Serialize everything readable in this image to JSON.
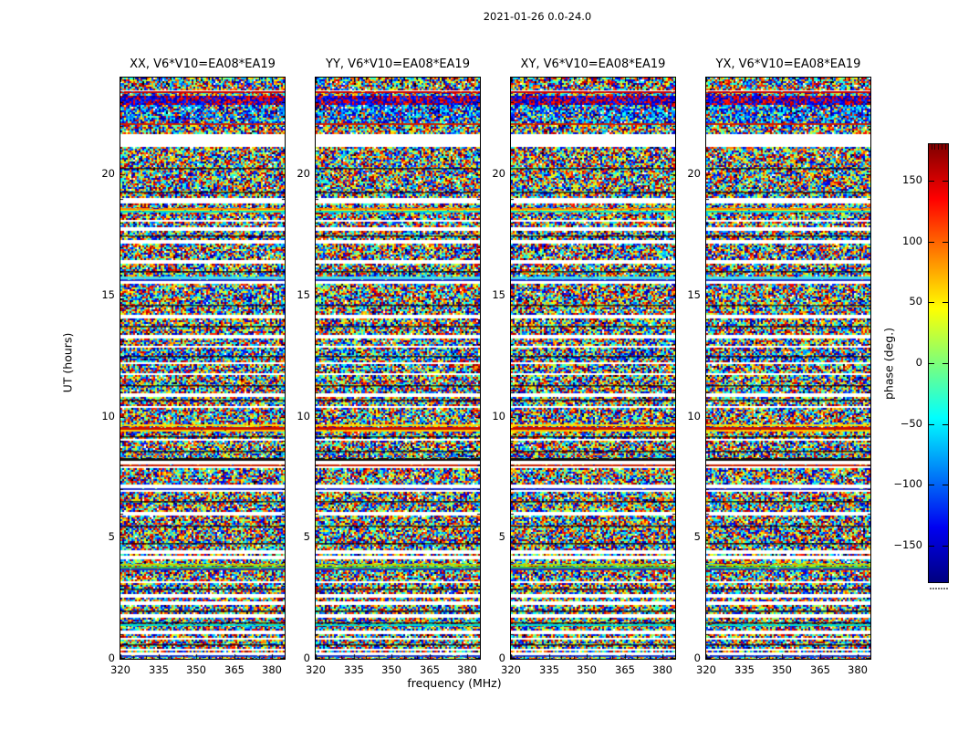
{
  "chart_data": {
    "type": "heatmap",
    "suptitle": "2021-01-26 0.0-24.0",
    "xlabel": "frequency (MHz)",
    "ylabel": "UT (hours)",
    "x_range": [
      320,
      385
    ],
    "y_range": [
      0,
      24
    ],
    "x_ticks": [
      320,
      335,
      350,
      365,
      380
    ],
    "x_tick_labels": [
      "320",
      "335",
      "350",
      "365",
      "380"
    ],
    "x_minor_ticks": [
      325,
      330,
      340,
      345,
      355,
      360,
      370,
      375
    ],
    "y_ticks": [
      0,
      5,
      10,
      15,
      20
    ],
    "y_tick_labels": [
      "0",
      "5",
      "10",
      "15",
      "20"
    ],
    "y_minor_step": 1,
    "values_description": "uniform random interferometric phase noise spanning -180 to +180 deg, with flagged (white) time ranges and coherent colored bands",
    "panels": [
      {
        "id": "xx",
        "title": "XX, V6*V10=EA08*EA19",
        "seed": 101
      },
      {
        "id": "yy",
        "title": "YY, V6*V10=EA08*EA19",
        "seed": 202
      },
      {
        "id": "xy",
        "title": "XY, V6*V10=EA08*EA19",
        "seed": 303
      },
      {
        "id": "yx",
        "title": "YX, V6*V10=EA08*EA19",
        "seed": 404
      }
    ],
    "colorbar": {
      "label": "phase (deg.)",
      "range": [
        -180,
        180
      ],
      "ticks": [
        150,
        100,
        50,
        0,
        -50,
        -100,
        -150
      ],
      "tick_labels": [
        "150",
        "100",
        "50",
        "0",
        "−50",
        "−100",
        "−150"
      ],
      "colormap": "jet",
      "gradient": [
        {
          "pos": 0.0,
          "color": "#000080"
        },
        {
          "pos": 0.125,
          "color": "#0000f1"
        },
        {
          "pos": 0.375,
          "color": "#00ffff"
        },
        {
          "pos": 0.5,
          "color": "#7dff7a"
        },
        {
          "pos": 0.625,
          "color": "#ffff00"
        },
        {
          "pos": 0.875,
          "color": "#ff0000"
        },
        {
          "pos": 1.0,
          "color": "#800000"
        }
      ]
    },
    "features": {
      "gaps": [
        [
          23.36,
          23.51
        ],
        [
          22.04,
          22.15
        ],
        [
          21.13,
          21.66
        ],
        [
          18.8,
          18.99
        ],
        [
          18.01,
          18.12
        ],
        [
          17.67,
          17.82
        ],
        [
          17.18,
          17.29
        ],
        [
          16.28,
          16.43
        ],
        [
          15.45,
          15.6
        ],
        [
          14.05,
          14.17
        ],
        [
          13.26,
          13.41
        ],
        [
          12.85,
          12.96
        ],
        [
          12.17,
          12.28
        ],
        [
          11.68,
          11.79
        ],
        [
          10.85,
          11.0
        ],
        [
          10.36,
          10.47
        ],
        [
          9.95,
          10.02
        ],
        [
          8.97,
          9.08
        ],
        [
          8.03,
          8.21
        ],
        [
          7.87,
          7.97
        ],
        [
          7.08,
          7.2
        ],
        [
          6.93,
          7.03
        ],
        [
          5.88,
          6.07
        ],
        [
          4.37,
          4.52
        ],
        [
          4.11,
          4.26
        ],
        [
          3.13,
          3.24
        ],
        [
          2.49,
          2.64
        ],
        [
          2.26,
          2.37
        ],
        [
          1.7,
          1.81
        ],
        [
          1.02,
          1.17
        ],
        [
          0.79,
          0.9
        ],
        [
          0.34,
          0.41
        ],
        [
          0.08,
          0.28
        ]
      ],
      "lines": [
        {
          "t": 23.41,
          "h": 0.08,
          "c": "#cc0000"
        },
        {
          "t": 23.1,
          "h": 0.33,
          "c": "mix-rb"
        },
        {
          "t": 22.09,
          "h": 0.06,
          "c": "#cc2200"
        },
        {
          "t": 18.58,
          "h": 0.07,
          "c": "#ff8800"
        },
        {
          "t": 18.52,
          "h": 0.05,
          "c": "#ffee00"
        },
        {
          "t": 18.46,
          "h": 0.05,
          "c": "#00ddcc"
        },
        {
          "t": 15.72,
          "h": 0.12,
          "c": "#44ddee"
        },
        {
          "t": 15.62,
          "h": 0.08,
          "c": "#2233cc"
        },
        {
          "t": 9.63,
          "h": 0.07,
          "c": "#ffdd00"
        },
        {
          "t": 9.53,
          "h": 0.1,
          "c": "#cc1100"
        },
        {
          "t": 9.43,
          "h": 0.06,
          "c": "#ffcc00"
        },
        {
          "t": 8.23,
          "h": 0.11,
          "c": "#111111"
        },
        {
          "t": 7.99,
          "h": 0.06,
          "c": "#cc2200"
        },
        {
          "t": 7.0,
          "h": 0.05,
          "c": "#2233cc"
        },
        {
          "t": 3.87,
          "h": 0.07,
          "c": "#aadd00"
        },
        {
          "t": 3.79,
          "h": 0.06,
          "c": "#33bb44"
        },
        {
          "t": 3.7,
          "h": 0.05,
          "c": "#2233bb"
        },
        {
          "t": 1.39,
          "h": 0.05,
          "c": "#00ddcc"
        },
        {
          "t": 0.14,
          "h": 0.05,
          "c": "#2244cc"
        }
      ],
      "dark_lines": [
        20.27,
        19.3,
        17.5,
        16.0,
        14.6,
        13.75,
        12.5,
        11.3,
        10.7,
        9.2,
        8.6,
        6.5,
        5.5,
        4.8,
        2.9,
        2.0,
        1.5,
        0.6
      ],
      "tints": [
        {
          "t0": 22.15,
          "t1": 22.95,
          "w": 0.5
        },
        {
          "t0": 12.3,
          "t1": 12.8,
          "w": 0.3
        }
      ]
    }
  }
}
